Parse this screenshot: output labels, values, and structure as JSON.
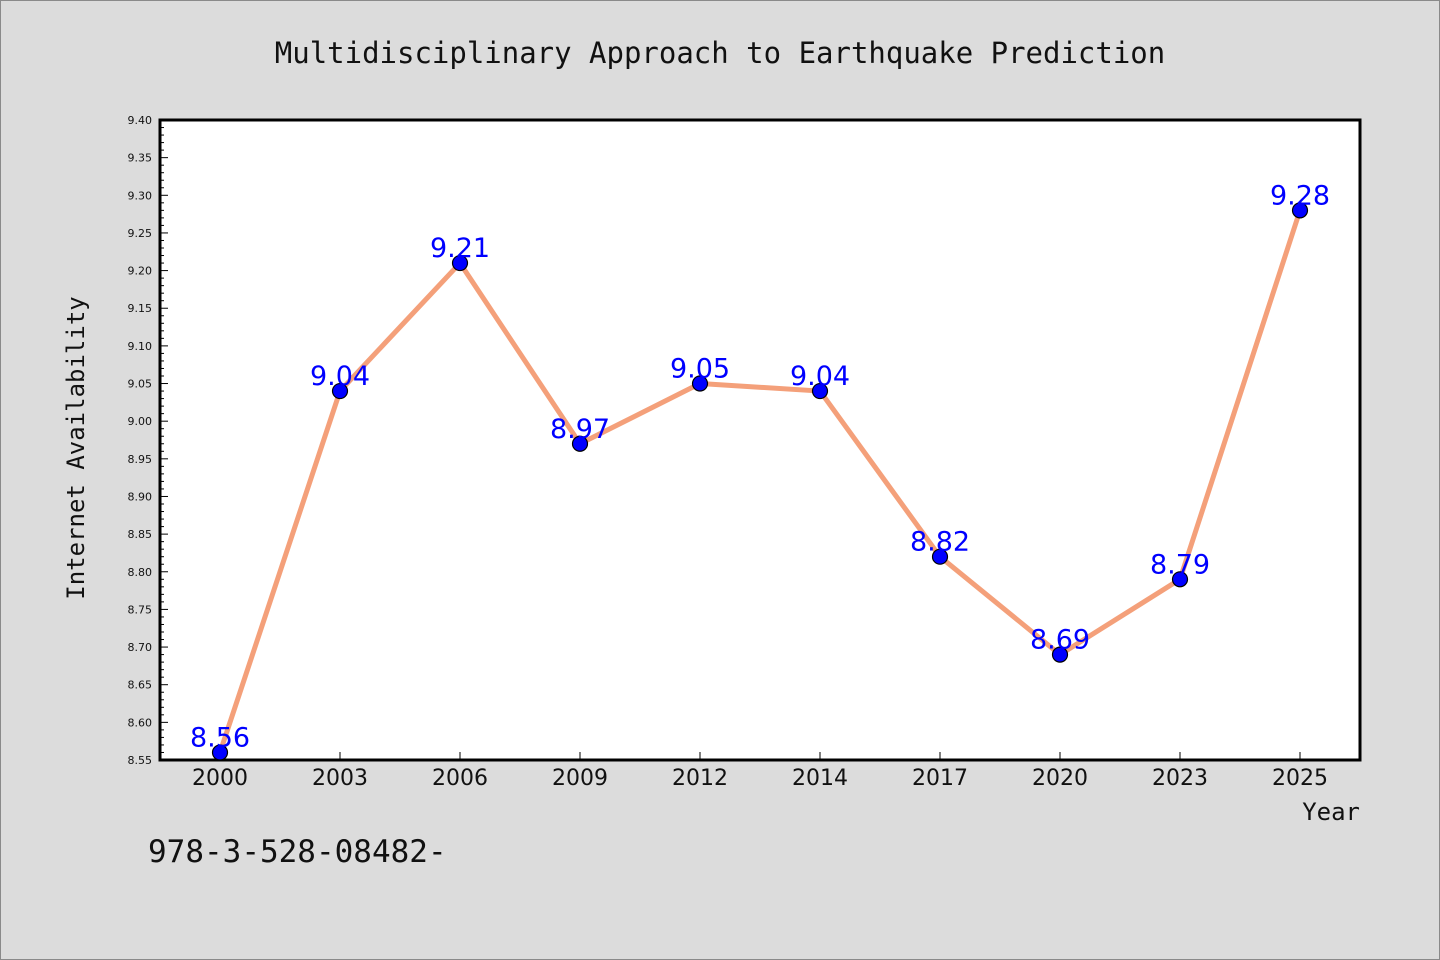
{
  "chart_data": {
    "type": "line",
    "title": "Multidisciplinary Approach to Earthquake Prediction",
    "xlabel": "Year",
    "ylabel": "Internet Availability",
    "categories": [
      "2000",
      "2003",
      "2006",
      "2009",
      "2012",
      "2014",
      "2017",
      "2020",
      "2023",
      "2025"
    ],
    "values": [
      8.56,
      9.04,
      9.21,
      8.97,
      9.05,
      9.04,
      8.82,
      8.69,
      8.79,
      9.28
    ],
    "data_labels": [
      "8.56",
      "9.04",
      "9.21",
      "8.97",
      "9.05",
      "9.04",
      "8.82",
      "8.69",
      "8.79",
      "9.28"
    ],
    "ylim": [
      8.55,
      9.4
    ],
    "y_ticks": [
      "8.55",
      "8.60",
      "8.65",
      "8.70",
      "8.75",
      "8.80",
      "8.85",
      "8.90",
      "8.95",
      "9.00",
      "9.05",
      "9.10",
      "9.15",
      "9.20",
      "9.25",
      "9.30",
      "9.35",
      "9.40"
    ],
    "grid": false,
    "legend": "none",
    "colors": {
      "line": "#f4a07a",
      "marker": "#0000ff",
      "data_label": "#0000ff",
      "background": "#dcdcdc",
      "plot_area": "#ffffff"
    }
  },
  "footnote": "978-3-528-08482-"
}
